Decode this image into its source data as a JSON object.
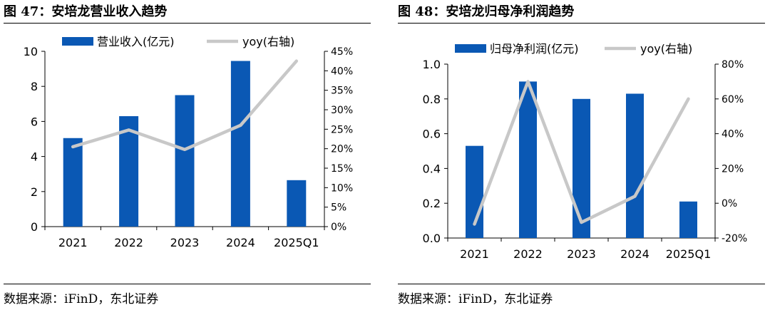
{
  "colors": {
    "bar": "#0a58b4",
    "line": "#c8c8c8",
    "axis": "#000000"
  },
  "panels": [
    {
      "title": "图 47：安培龙营业收入趋势",
      "source": "数据来源：iFinD，东北证券",
      "chart_data": {
        "type": "bar",
        "categories": [
          "2021",
          "2022",
          "2023",
          "2024",
          "2025Q1"
        ],
        "series": [
          {
            "name": "营业收入(亿元)",
            "type": "bar",
            "axis": "left",
            "values": [
              5.05,
              6.3,
              7.5,
              9.45,
              2.65
            ]
          },
          {
            "name": "yoy(右轴)",
            "type": "line",
            "axis": "right",
            "values": [
              20.5,
              24.8,
              19.8,
              26.0,
              42.5
            ]
          }
        ],
        "y_left": {
          "ylim": [
            0,
            10
          ],
          "ticks": [
            "0",
            "2",
            "4",
            "6",
            "8",
            "10"
          ]
        },
        "y_right": {
          "ylim": [
            0,
            45
          ],
          "ticks": [
            "0%",
            "5%",
            "10%",
            "15%",
            "20%",
            "25%",
            "30%",
            "35%",
            "40%",
            "45%"
          ]
        },
        "legend_position": "top",
        "grid": false
      }
    },
    {
      "title": "图 48：安培龙归母净利润趋势",
      "source": "数据来源：iFinD，东北证券",
      "chart_data": {
        "type": "bar",
        "categories": [
          "2021",
          "2022",
          "2023",
          "2024",
          "2025Q1"
        ],
        "series": [
          {
            "name": "归母净利润(亿元)",
            "type": "bar",
            "axis": "left",
            "values": [
              0.53,
              0.9,
              0.8,
              0.83,
              0.21
            ]
          },
          {
            "name": "yoy(右轴)",
            "type": "line",
            "axis": "right",
            "values": [
              -12,
              70,
              -11,
              4,
              60
            ]
          }
        ],
        "y_left": {
          "ylim": [
            0,
            1.0
          ],
          "ticks": [
            "0.0",
            "0.2",
            "0.4",
            "0.6",
            "0.8",
            "1.0"
          ]
        },
        "y_right": {
          "ylim": [
            -20,
            80
          ],
          "ticks": [
            "-20%",
            "0%",
            "20%",
            "40%",
            "60%",
            "80%"
          ]
        },
        "legend_position": "top",
        "grid": false
      }
    }
  ]
}
